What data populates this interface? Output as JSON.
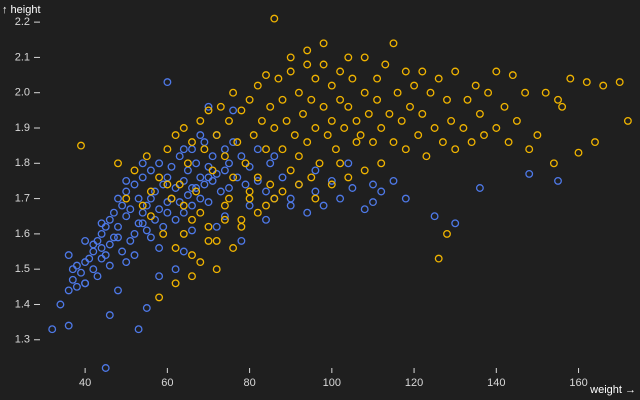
{
  "chart_data": {
    "type": "scatter",
    "xlabel": "weight →",
    "ylabel": "↑ height",
    "xlim": [
      30,
      173
    ],
    "ylim": [
      1.22,
      2.24
    ],
    "x_ticks": [
      40,
      60,
      80,
      100,
      120,
      140,
      160
    ],
    "y_ticks": [
      1.3,
      1.4,
      1.5,
      1.6,
      1.7,
      1.8,
      1.9,
      2.0,
      2.1,
      2.2
    ],
    "grid": false,
    "legend": "none",
    "background": "#1f1f1f",
    "series": [
      {
        "color": "#4e79e8",
        "marker": "open-circle",
        "points": [
          [
            32,
            1.33
          ],
          [
            34,
            1.4
          ],
          [
            36,
            1.44
          ],
          [
            37,
            1.5
          ],
          [
            37,
            1.47
          ],
          [
            38,
            1.45
          ],
          [
            39,
            1.49
          ],
          [
            40,
            1.52
          ],
          [
            40,
            1.46
          ],
          [
            41,
            1.53
          ],
          [
            42,
            1.55
          ],
          [
            42,
            1.5
          ],
          [
            43,
            1.58
          ],
          [
            43,
            1.48
          ],
          [
            44,
            1.6
          ],
          [
            44,
            1.56
          ],
          [
            45,
            1.62
          ],
          [
            45,
            1.54
          ],
          [
            46,
            1.64
          ],
          [
            46,
            1.57
          ],
          [
            47,
            1.66
          ],
          [
            47,
            1.59
          ],
          [
            48,
            1.7
          ],
          [
            48,
            1.62
          ],
          [
            49,
            1.68
          ],
          [
            49,
            1.55
          ],
          [
            50,
            1.72
          ],
          [
            50,
            1.65
          ],
          [
            51,
            1.67
          ],
          [
            51,
            1.58
          ],
          [
            52,
            1.74
          ],
          [
            52,
            1.6
          ],
          [
            53,
            1.7
          ],
          [
            53,
            1.63
          ],
          [
            54,
            1.76
          ],
          [
            54,
            1.66
          ],
          [
            55,
            1.68
          ],
          [
            55,
            1.61
          ],
          [
            56,
            1.78
          ],
          [
            56,
            1.7
          ],
          [
            57,
            1.64
          ],
          [
            57,
            1.72
          ],
          [
            58,
            1.8
          ],
          [
            58,
            1.67
          ],
          [
            59,
            1.74
          ],
          [
            59,
            1.62
          ],
          [
            60,
            1.76
          ],
          [
            60,
            1.66
          ],
          [
            61,
            1.7
          ],
          [
            61,
            1.79
          ],
          [
            62,
            1.73
          ],
          [
            62,
            1.64
          ],
          [
            63,
            1.82
          ],
          [
            63,
            1.69
          ],
          [
            64,
            1.75
          ],
          [
            64,
            1.66
          ],
          [
            65,
            1.78
          ],
          [
            65,
            1.71
          ],
          [
            66,
            1.84
          ],
          [
            66,
            1.68
          ],
          [
            67,
            1.73
          ],
          [
            67,
            1.8
          ],
          [
            68,
            1.76
          ],
          [
            68,
            1.7
          ],
          [
            69,
            1.86
          ],
          [
            69,
            1.74
          ],
          [
            70,
            1.79
          ],
          [
            70,
            1.69
          ],
          [
            71,
            1.82
          ],
          [
            71,
            1.75
          ],
          [
            72,
            1.77
          ],
          [
            72,
            1.88
          ],
          [
            73,
            1.72
          ],
          [
            74,
            1.84
          ],
          [
            74,
            1.78
          ],
          [
            75,
            1.8
          ],
          [
            75,
            1.73
          ],
          [
            76,
            1.86
          ],
          [
            77,
            1.76
          ],
          [
            78,
            1.82
          ],
          [
            79,
            1.74
          ],
          [
            80,
            1.79
          ],
          [
            80,
            1.68
          ],
          [
            82,
            1.84
          ],
          [
            82,
            1.75
          ],
          [
            84,
            1.72
          ],
          [
            85,
            1.8
          ],
          [
            86,
            1.7
          ],
          [
            88,
            1.76
          ],
          [
            90,
            1.68
          ],
          [
            92,
            1.74
          ],
          [
            94,
            1.66
          ],
          [
            96,
            1.72
          ],
          [
            98,
            1.68
          ],
          [
            100,
            1.75
          ],
          [
            102,
            1.7
          ],
          [
            105,
            1.73
          ],
          [
            108,
            1.67
          ],
          [
            110,
            1.74
          ],
          [
            112,
            1.72
          ],
          [
            115,
            1.75
          ],
          [
            118,
            1.7
          ],
          [
            125,
            1.65
          ],
          [
            130,
            1.63
          ],
          [
            136,
            1.73
          ],
          [
            148,
            1.77
          ],
          [
            155,
            1.75
          ],
          [
            46,
            1.37
          ],
          [
            36,
            1.34
          ],
          [
            53,
            1.33
          ],
          [
            55,
            1.39
          ],
          [
            40,
            1.46
          ],
          [
            48,
            1.44
          ],
          [
            58,
            1.48
          ],
          [
            62,
            1.5
          ],
          [
            45,
            1.22
          ],
          [
            60,
            2.03
          ],
          [
            70,
            1.96
          ],
          [
            76,
            1.95
          ],
          [
            68,
            1.88
          ],
          [
            72,
            1.62
          ],
          [
            78,
            1.58
          ],
          [
            64,
            1.55
          ],
          [
            50,
            1.52
          ],
          [
            44,
            1.53
          ],
          [
            42,
            1.57
          ],
          [
            38,
            1.51
          ],
          [
            56,
            1.59
          ],
          [
            66,
            1.61
          ],
          [
            74,
            1.65
          ],
          [
            84,
            1.64
          ],
          [
            90,
            1.7
          ],
          [
            96,
            1.78
          ],
          [
            104,
            1.8
          ],
          [
            110,
            1.69
          ],
          [
            58,
            1.56
          ],
          [
            52,
            1.54
          ],
          [
            46,
            1.51
          ],
          [
            48,
            1.59
          ],
          [
            54,
            1.63
          ],
          [
            60,
            1.69
          ],
          [
            66,
            1.73
          ],
          [
            70,
            1.76
          ],
          [
            44,
            1.63
          ],
          [
            40,
            1.58
          ],
          [
            36,
            1.54
          ],
          [
            50,
            1.75
          ],
          [
            54,
            1.8
          ],
          [
            64,
            1.84
          ],
          [
            86,
            1.82
          ]
        ]
      },
      {
        "color": "#f0b400",
        "marker": "open-circle",
        "points": [
          [
            39,
            1.85
          ],
          [
            48,
            1.8
          ],
          [
            52,
            1.78
          ],
          [
            55,
            1.82
          ],
          [
            56,
            1.65
          ],
          [
            58,
            1.76
          ],
          [
            59,
            1.6
          ],
          [
            60,
            1.84
          ],
          [
            61,
            1.7
          ],
          [
            62,
            1.88
          ],
          [
            62,
            1.56
          ],
          [
            63,
            1.74
          ],
          [
            64,
            1.9
          ],
          [
            64,
            1.6
          ],
          [
            65,
            1.8
          ],
          [
            66,
            1.86
          ],
          [
            66,
            1.54
          ],
          [
            67,
            1.72
          ],
          [
            68,
            1.92
          ],
          [
            68,
            1.66
          ],
          [
            69,
            1.84
          ],
          [
            70,
            1.95
          ],
          [
            70,
            1.62
          ],
          [
            71,
            1.78
          ],
          [
            72,
            1.88
          ],
          [
            72,
            1.58
          ],
          [
            73,
            1.96
          ],
          [
            74,
            1.82
          ],
          [
            74,
            1.68
          ],
          [
            75,
            1.92
          ],
          [
            76,
            1.76
          ],
          [
            76,
            2.0
          ],
          [
            77,
            1.86
          ],
          [
            78,
            1.95
          ],
          [
            78,
            1.64
          ],
          [
            79,
            1.8
          ],
          [
            80,
            1.98
          ],
          [
            80,
            1.72
          ],
          [
            81,
            1.88
          ],
          [
            82,
            2.02
          ],
          [
            82,
            1.76
          ],
          [
            83,
            1.92
          ],
          [
            84,
            1.84
          ],
          [
            84,
            2.05
          ],
          [
            85,
            1.96
          ],
          [
            86,
            1.7
          ],
          [
            86,
            1.9
          ],
          [
            87,
            2.04
          ],
          [
            88,
            1.84
          ],
          [
            88,
            1.98
          ],
          [
            89,
            1.92
          ],
          [
            90,
            2.06
          ],
          [
            90,
            1.78
          ],
          [
            91,
            1.88
          ],
          [
            92,
            2.0
          ],
          [
            92,
            1.82
          ],
          [
            93,
            1.94
          ],
          [
            94,
            2.08
          ],
          [
            94,
            1.86
          ],
          [
            95,
            1.98
          ],
          [
            96,
            1.9
          ],
          [
            96,
            2.04
          ],
          [
            97,
            1.8
          ],
          [
            98,
            1.96
          ],
          [
            98,
            2.08
          ],
          [
            99,
            1.88
          ],
          [
            100,
            2.02
          ],
          [
            100,
            1.92
          ],
          [
            101,
            1.84
          ],
          [
            102,
            1.98
          ],
          [
            102,
            2.06
          ],
          [
            103,
            1.9
          ],
          [
            104,
            1.96
          ],
          [
            105,
            2.04
          ],
          [
            106,
            1.92
          ],
          [
            107,
            1.88
          ],
          [
            108,
            2.0
          ],
          [
            109,
            1.94
          ],
          [
            110,
            1.86
          ],
          [
            111,
            1.98
          ],
          [
            112,
            1.9
          ],
          [
            113,
            2.08
          ],
          [
            114,
            1.94
          ],
          [
            115,
            1.86
          ],
          [
            115,
            2.14
          ],
          [
            116,
            2.0
          ],
          [
            117,
            1.92
          ],
          [
            118,
            1.84
          ],
          [
            119,
            1.96
          ],
          [
            120,
            2.02
          ],
          [
            121,
            1.88
          ],
          [
            122,
            1.94
          ],
          [
            123,
            1.82
          ],
          [
            124,
            2.0
          ],
          [
            125,
            1.9
          ],
          [
            126,
            2.04
          ],
          [
            127,
            1.86
          ],
          [
            128,
            1.98
          ],
          [
            129,
            1.92
          ],
          [
            130,
            1.84
          ],
          [
            130,
            2.06
          ],
          [
            132,
            1.9
          ],
          [
            133,
            1.98
          ],
          [
            134,
            1.86
          ],
          [
            135,
            2.02
          ],
          [
            136,
            1.94
          ],
          [
            137,
            1.88
          ],
          [
            138,
            2.0
          ],
          [
            140,
            1.9
          ],
          [
            142,
            1.96
          ],
          [
            143,
            1.86
          ],
          [
            145,
            1.92
          ],
          [
            148,
            1.84
          ],
          [
            150,
            1.88
          ],
          [
            152,
            2.0
          ],
          [
            154,
            1.8
          ],
          [
            156,
            1.96
          ],
          [
            158,
            2.04
          ],
          [
            160,
            1.83
          ],
          [
            162,
            2.03
          ],
          [
            164,
            1.86
          ],
          [
            166,
            2.02
          ],
          [
            170,
            2.03
          ],
          [
            172,
            1.92
          ],
          [
            86,
            2.21
          ],
          [
            98,
            2.14
          ],
          [
            104,
            2.1
          ],
          [
            122,
            2.06
          ],
          [
            126,
            1.53
          ],
          [
            128,
            1.6
          ],
          [
            112,
            1.8
          ],
          [
            60,
            1.74
          ],
          [
            54,
            1.68
          ],
          [
            66,
            1.64
          ],
          [
            70,
            1.58
          ],
          [
            74,
            1.64
          ],
          [
            78,
            1.62
          ],
          [
            82,
            1.66
          ],
          [
            58,
            1.42
          ],
          [
            62,
            1.46
          ],
          [
            66,
            1.48
          ],
          [
            72,
            1.5
          ],
          [
            76,
            1.56
          ],
          [
            68,
            1.52
          ],
          [
            88,
            1.72
          ],
          [
            92,
            1.74
          ],
          [
            96,
            1.7
          ],
          [
            100,
            1.74
          ],
          [
            104,
            1.76
          ],
          [
            108,
            1.78
          ],
          [
            90,
            2.1
          ],
          [
            94,
            2.12
          ],
          [
            108,
            2.1
          ],
          [
            102,
            1.8
          ],
          [
            95,
            1.76
          ],
          [
            85,
            1.74
          ],
          [
            80,
            1.7
          ],
          [
            75,
            1.7
          ],
          [
            140,
            2.06
          ],
          [
            144,
            2.05
          ],
          [
            147,
            2.0
          ],
          [
            155,
            1.98
          ],
          [
            118,
            2.06
          ],
          [
            111,
            2.04
          ],
          [
            106,
            1.86
          ],
          [
            84,
            1.68
          ],
          [
            64,
            1.68
          ],
          [
            56,
            1.72
          ],
          [
            50,
            1.7
          ]
        ]
      }
    ]
  }
}
